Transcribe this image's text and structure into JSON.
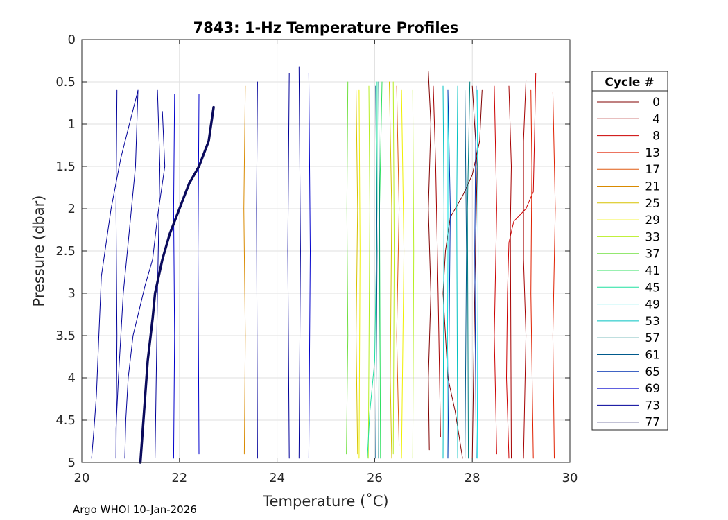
{
  "chart_data": {
    "type": "line",
    "title": "7843: 1-Hz Temperature Profiles",
    "xlabel": "Temperature (˚C)",
    "ylabel": "Pressure (dbar)",
    "xlim": [
      20,
      30
    ],
    "ylim": [
      0,
      5
    ],
    "y_reversed": true,
    "grid": true,
    "xticks": [
      "20",
      "22",
      "24",
      "26",
      "28",
      "30"
    ],
    "yticks": [
      "0",
      "0.5",
      "1",
      "1.5",
      "2",
      "2.5",
      "3",
      "3.5",
      "4",
      "4.5",
      "5"
    ],
    "legend": {
      "title": "Cycle #",
      "placement": "outside-right",
      "entries": [
        {
          "label": "0",
          "color": "#800000"
        },
        {
          "label": "4",
          "color": "#a50000"
        },
        {
          "label": "8",
          "color": "#cc0000"
        },
        {
          "label": "13",
          "color": "#e02000"
        },
        {
          "label": "17",
          "color": "#e05a10"
        },
        {
          "label": "21",
          "color": "#d98a00"
        },
        {
          "label": "25",
          "color": "#d7c200"
        },
        {
          "label": "29",
          "color": "#f0f000"
        },
        {
          "label": "33",
          "color": "#b8ee20"
        },
        {
          "label": "37",
          "color": "#70e040"
        },
        {
          "label": "41",
          "color": "#30e060"
        },
        {
          "label": "45",
          "color": "#20e0a0"
        },
        {
          "label": "49",
          "color": "#00e0e0"
        },
        {
          "label": "53",
          "color": "#00c0c0"
        },
        {
          "label": "57",
          "color": "#008080"
        },
        {
          "label": "61",
          "color": "#005a8c"
        },
        {
          "label": "65",
          "color": "#0030b0"
        },
        {
          "label": "69",
          "color": "#0000cc"
        },
        {
          "label": "73",
          "color": "#000099"
        },
        {
          "label": "77",
          "color": "#0a0a5c"
        }
      ]
    },
    "series": [
      {
        "cycle": "0",
        "color": "#800000",
        "width": 1,
        "points": [
          [
            27.1,
            0.38
          ],
          [
            27.15,
            1.0
          ],
          [
            27.1,
            2.0
          ],
          [
            27.15,
            3.0
          ],
          [
            27.1,
            4.0
          ],
          [
            27.12,
            4.85
          ]
        ]
      },
      {
        "cycle": "0",
        "color": "#800000",
        "width": 1,
        "points": [
          [
            28.2,
            0.6
          ],
          [
            28.15,
            1.2
          ],
          [
            28.0,
            1.6
          ],
          [
            27.8,
            1.85
          ],
          [
            27.55,
            2.1
          ],
          [
            27.45,
            2.5
          ],
          [
            27.4,
            3.0
          ],
          [
            27.45,
            3.5
          ],
          [
            27.5,
            4.0
          ],
          [
            27.65,
            4.4
          ],
          [
            27.8,
            4.95
          ]
        ]
      },
      {
        "cycle": "4",
        "color": "#a50000",
        "width": 1,
        "points": [
          [
            27.2,
            0.55
          ],
          [
            27.25,
            1.5
          ],
          [
            27.3,
            3.0
          ],
          [
            27.35,
            4.7
          ]
        ]
      },
      {
        "cycle": "8",
        "color": "#cc0000",
        "width": 1,
        "points": [
          [
            29.3,
            0.4
          ],
          [
            29.28,
            1.0
          ],
          [
            29.25,
            1.8
          ],
          [
            29.1,
            2.0
          ],
          [
            28.85,
            2.15
          ],
          [
            28.75,
            2.4
          ],
          [
            28.72,
            3.0
          ],
          [
            28.7,
            4.0
          ],
          [
            28.75,
            4.95
          ]
        ]
      },
      {
        "cycle": "8",
        "color": "#cc0000",
        "width": 1,
        "points": [
          [
            28.45,
            0.55
          ],
          [
            28.5,
            2.0
          ],
          [
            28.45,
            3.5
          ],
          [
            28.5,
            4.9
          ]
        ]
      },
      {
        "cycle": "13",
        "color": "#e02000",
        "width": 1,
        "points": [
          [
            29.2,
            0.6
          ],
          [
            29.22,
            1.5
          ],
          [
            29.2,
            3.0
          ],
          [
            29.25,
            4.95
          ]
        ]
      },
      {
        "cycle": "13",
        "color": "#e02000",
        "width": 1,
        "points": [
          [
            29.65,
            0.62
          ],
          [
            29.7,
            2.0
          ],
          [
            29.65,
            3.5
          ],
          [
            29.68,
            4.95
          ]
        ]
      },
      {
        "cycle": "4",
        "color": "#a50000",
        "width": 1,
        "points": [
          [
            29.1,
            0.48
          ],
          [
            29.05,
            1.2
          ],
          [
            29.05,
            2.6
          ],
          [
            29.1,
            3.5
          ],
          [
            29.05,
            4.95
          ]
        ]
      },
      {
        "cycle": "4",
        "color": "#a50000",
        "width": 1,
        "points": [
          [
            28.75,
            0.55
          ],
          [
            28.8,
            1.5
          ],
          [
            28.78,
            2.2
          ],
          [
            28.8,
            4.95
          ]
        ]
      },
      {
        "cycle": "0",
        "color": "#800000",
        "width": 1,
        "points": [
          [
            28.0,
            0.55
          ],
          [
            28.1,
            1.5
          ],
          [
            28.05,
            3.0
          ],
          [
            28.0,
            4.95
          ]
        ]
      },
      {
        "cycle": "21",
        "color": "#d98a00",
        "width": 1,
        "points": [
          [
            23.35,
            0.55
          ],
          [
            23.32,
            2.0
          ],
          [
            23.35,
            3.5
          ],
          [
            23.33,
            4.9
          ]
        ]
      },
      {
        "cycle": "17",
        "color": "#e05a10",
        "width": 1,
        "points": [
          [
            26.45,
            0.55
          ],
          [
            26.5,
            2.0
          ],
          [
            26.45,
            3.5
          ],
          [
            26.5,
            4.8
          ]
        ]
      },
      {
        "cycle": "25",
        "color": "#d7c200",
        "width": 1,
        "points": [
          [
            25.62,
            0.6
          ],
          [
            25.65,
            2.0
          ],
          [
            25.62,
            3.5
          ],
          [
            25.65,
            4.9
          ]
        ]
      },
      {
        "cycle": "25",
        "color": "#d7c200",
        "width": 1,
        "points": [
          [
            26.3,
            0.5
          ],
          [
            26.35,
            2.0
          ],
          [
            26.32,
            4.0
          ],
          [
            26.35,
            4.95
          ]
        ]
      },
      {
        "cycle": "29",
        "color": "#f0f000",
        "width": 1,
        "points": [
          [
            25.68,
            0.6
          ],
          [
            25.7,
            2.5
          ],
          [
            25.68,
            4.95
          ]
        ]
      },
      {
        "cycle": "29",
        "color": "#f0f000",
        "width": 1,
        "points": [
          [
            26.55,
            0.6
          ],
          [
            26.6,
            2.5
          ],
          [
            26.55,
            4.95
          ]
        ]
      },
      {
        "cycle": "33",
        "color": "#b8ee20",
        "width": 1,
        "points": [
          [
            25.88,
            0.55
          ],
          [
            25.9,
            2.0
          ],
          [
            25.87,
            4.95
          ]
        ]
      },
      {
        "cycle": "33",
        "color": "#b8ee20",
        "width": 1,
        "points": [
          [
            26.78,
            0.6
          ],
          [
            26.8,
            2.5
          ],
          [
            26.78,
            4.95
          ]
        ]
      },
      {
        "cycle": "33",
        "color": "#b8ee20",
        "width": 1,
        "points": [
          [
            26.38,
            0.5
          ],
          [
            26.4,
            2.5
          ],
          [
            26.38,
            4.9
          ]
        ]
      },
      {
        "cycle": "37",
        "color": "#70e040",
        "width": 1,
        "points": [
          [
            25.45,
            0.5
          ],
          [
            25.43,
            2.0
          ],
          [
            25.45,
            3.5
          ],
          [
            25.42,
            4.9
          ]
        ]
      },
      {
        "cycle": "41",
        "color": "#30e060",
        "width": 1,
        "points": [
          [
            26.15,
            0.5
          ],
          [
            26.1,
            2.0
          ],
          [
            26.12,
            4.95
          ]
        ]
      },
      {
        "cycle": "45",
        "color": "#20e0a0",
        "width": 1,
        "points": [
          [
            26.05,
            0.5
          ],
          [
            26.05,
            2.0
          ],
          [
            26.0,
            3.8
          ],
          [
            25.9,
            4.4
          ],
          [
            25.85,
            4.95
          ]
        ]
      },
      {
        "cycle": "49",
        "color": "#00e0e0",
        "width": 1,
        "points": [
          [
            27.5,
            0.6
          ],
          [
            27.5,
            2.5
          ],
          [
            27.48,
            4.95
          ]
        ]
      },
      {
        "cycle": "49",
        "color": "#00e0e0",
        "width": 1,
        "points": [
          [
            28.1,
            0.6
          ],
          [
            28.12,
            2.5
          ],
          [
            28.1,
            4.95
          ]
        ]
      },
      {
        "cycle": "53",
        "color": "#00c0c0",
        "width": 1,
        "points": [
          [
            27.4,
            0.55
          ],
          [
            27.42,
            2.0
          ],
          [
            27.4,
            4.95
          ]
        ]
      },
      {
        "cycle": "53",
        "color": "#00c0c0",
        "width": 1,
        "points": [
          [
            27.7,
            0.55
          ],
          [
            27.68,
            2.0
          ],
          [
            27.7,
            4.95
          ]
        ]
      },
      {
        "cycle": "57",
        "color": "#008080",
        "width": 1,
        "points": [
          [
            26.08,
            0.5
          ],
          [
            26.1,
            2.0
          ],
          [
            26.08,
            4.95
          ]
        ]
      },
      {
        "cycle": "57",
        "color": "#008080",
        "width": 1,
        "points": [
          [
            27.95,
            0.5
          ],
          [
            27.9,
            2.0
          ],
          [
            27.92,
            4.95
          ]
        ]
      },
      {
        "cycle": "61",
        "color": "#005a8c",
        "width": 1,
        "points": [
          [
            26.02,
            0.55
          ],
          [
            26.05,
            2.5
          ],
          [
            26.02,
            4.95
          ]
        ]
      },
      {
        "cycle": "61",
        "color": "#005a8c",
        "width": 1,
        "points": [
          [
            27.85,
            0.6
          ],
          [
            27.88,
            2.5
          ],
          [
            27.85,
            4.95
          ]
        ]
      },
      {
        "cycle": "65",
        "color": "#0030b0",
        "width": 1,
        "points": [
          [
            27.5,
            0.6
          ],
          [
            27.55,
            2.0
          ],
          [
            27.5,
            4.95
          ]
        ]
      },
      {
        "cycle": "65",
        "color": "#0030b0",
        "width": 1,
        "points": [
          [
            28.08,
            0.55
          ],
          [
            28.05,
            2.5
          ],
          [
            28.08,
            4.95
          ]
        ]
      },
      {
        "cycle": "69",
        "color": "#0000cc",
        "width": 1,
        "points": [
          [
            21.9,
            0.65
          ],
          [
            21.88,
            2.0
          ],
          [
            21.9,
            3.5
          ],
          [
            21.88,
            4.95
          ]
        ]
      },
      {
        "cycle": "69",
        "color": "#0000cc",
        "width": 1,
        "points": [
          [
            22.4,
            0.65
          ],
          [
            22.38,
            2.5
          ],
          [
            22.4,
            4.9
          ]
        ]
      },
      {
        "cycle": "69",
        "color": "#0000cc",
        "width": 1,
        "points": [
          [
            24.65,
            0.4
          ],
          [
            24.68,
            2.5
          ],
          [
            24.65,
            4.95
          ]
        ]
      },
      {
        "cycle": "73",
        "color": "#000099",
        "width": 1,
        "points": [
          [
            20.72,
            0.6
          ],
          [
            20.7,
            2.0
          ],
          [
            20.72,
            3.5
          ],
          [
            20.7,
            4.95
          ]
        ]
      },
      {
        "cycle": "73",
        "color": "#000099",
        "width": 1,
        "points": [
          [
            21.55,
            0.6
          ],
          [
            21.6,
            1.5
          ],
          [
            21.55,
            3.0
          ],
          [
            21.5,
            4.95
          ]
        ]
      },
      {
        "cycle": "73",
        "color": "#000099",
        "width": 1,
        "points": [
          [
            23.6,
            0.5
          ],
          [
            23.58,
            2.0
          ],
          [
            23.6,
            4.95
          ]
        ]
      },
      {
        "cycle": "73",
        "color": "#000099",
        "width": 1,
        "points": [
          [
            24.45,
            0.32
          ],
          [
            24.48,
            2.5
          ],
          [
            24.45,
            4.95
          ]
        ]
      },
      {
        "cycle": "73",
        "color": "#000099",
        "width": 1,
        "points": [
          [
            24.25,
            0.4
          ],
          [
            24.22,
            2.5
          ],
          [
            24.25,
            4.95
          ]
        ]
      },
      {
        "cycle": "73",
        "color": "#000099",
        "width": 1,
        "points": [
          [
            21.15,
            0.6
          ],
          [
            21.1,
            1.5
          ],
          [
            20.95,
            2.4
          ],
          [
            20.85,
            3.0
          ],
          [
            20.75,
            4.0
          ],
          [
            20.7,
            4.6
          ],
          [
            20.7,
            4.95
          ]
        ]
      },
      {
        "cycle": "73",
        "color": "#000099",
        "width": 1,
        "points": [
          [
            21.15,
            0.6
          ],
          [
            20.8,
            1.4
          ],
          [
            20.6,
            2.0
          ],
          [
            20.5,
            2.4
          ],
          [
            20.4,
            2.8
          ],
          [
            20.35,
            3.5
          ],
          [
            20.3,
            4.2
          ],
          [
            20.25,
            4.6
          ],
          [
            20.2,
            4.95
          ]
        ]
      },
      {
        "cycle": "73",
        "color": "#000099",
        "width": 1,
        "points": [
          [
            21.65,
            0.85
          ],
          [
            21.7,
            1.5
          ],
          [
            21.55,
            2.1
          ],
          [
            21.45,
            2.6
          ],
          [
            21.3,
            2.9
          ],
          [
            21.05,
            3.5
          ],
          [
            20.95,
            4.0
          ],
          [
            20.9,
            4.5
          ],
          [
            20.88,
            4.95
          ]
        ]
      },
      {
        "cycle": "77",
        "color": "#0a0a5c",
        "width": 3.5,
        "points": [
          [
            22.7,
            0.8
          ],
          [
            22.6,
            1.2
          ],
          [
            22.4,
            1.5
          ],
          [
            22.2,
            1.7
          ],
          [
            22.0,
            2.0
          ],
          [
            21.8,
            2.3
          ],
          [
            21.65,
            2.6
          ],
          [
            21.5,
            3.0
          ],
          [
            21.45,
            3.3
          ],
          [
            21.35,
            3.8
          ],
          [
            21.3,
            4.2
          ],
          [
            21.25,
            4.6
          ],
          [
            21.2,
            5.0
          ]
        ]
      }
    ]
  },
  "footer": {
    "note": "Argo WHOI 10-Jan-2026"
  }
}
